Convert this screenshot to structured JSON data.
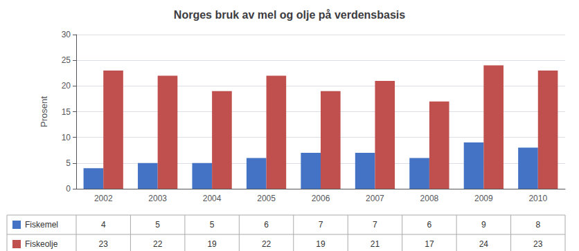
{
  "chart_data": {
    "type": "bar",
    "title": "Norges bruk av mel og olje på verdensbasis",
    "ylabel": "Prosent",
    "categories": [
      "2002",
      "2003",
      "2004",
      "2005",
      "2006",
      "2007",
      "2008",
      "2009",
      "2010"
    ],
    "series": [
      {
        "name": "Fiskemel",
        "color": "#4472C4",
        "values": [
          4,
          5,
          5,
          6,
          7,
          7,
          6,
          9,
          8
        ]
      },
      {
        "name": "Fiskeolje",
        "color": "#C0504D",
        "values": [
          23,
          22,
          19,
          22,
          19,
          21,
          17,
          24,
          23
        ]
      }
    ],
    "ylim": [
      0,
      30
    ],
    "yticks": [
      0,
      5,
      10,
      15,
      20,
      25,
      30
    ],
    "grid": true
  }
}
